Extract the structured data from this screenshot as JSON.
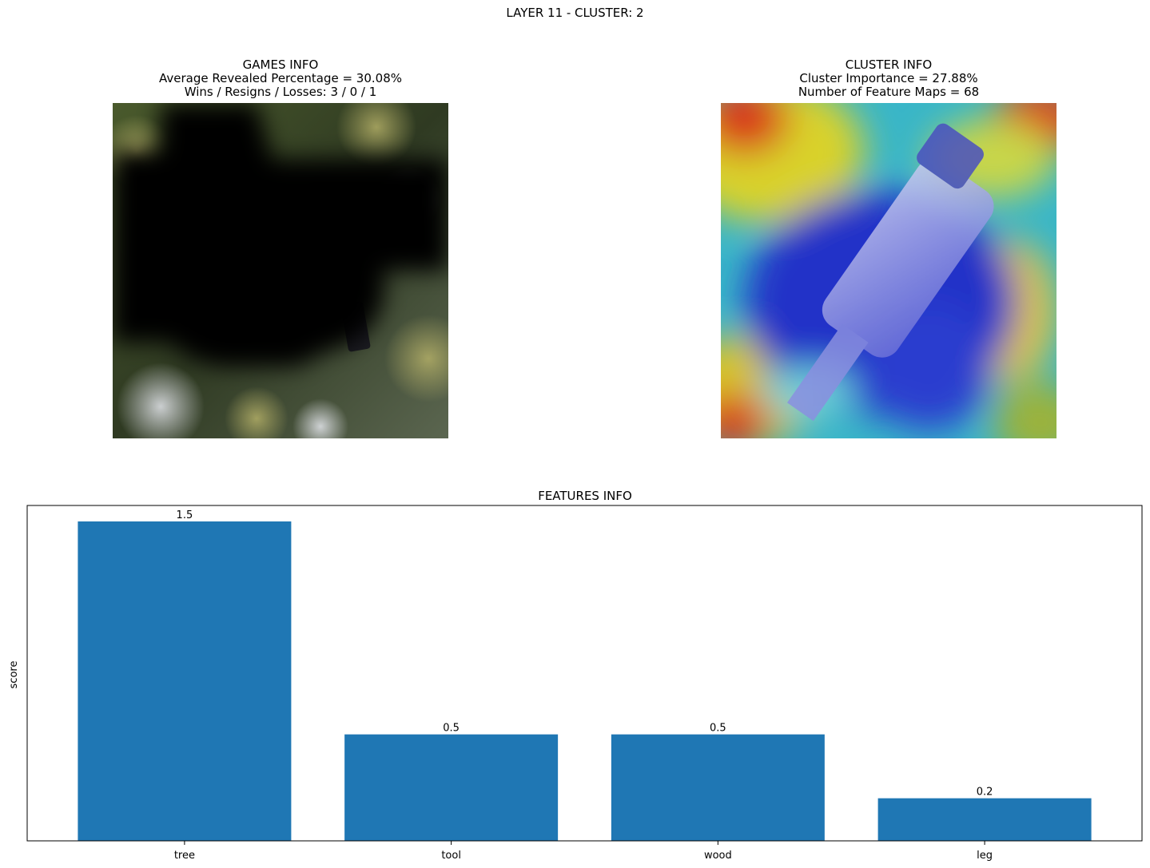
{
  "figure": {
    "suptitle": "LAYER 11 - CLUSTER: 2"
  },
  "games_info": {
    "title": "GAMES INFO",
    "line1": "Average Revealed Percentage = 30.08%",
    "line2": "Wins / Resigns / Losses: 3 / 0 / 1"
  },
  "cluster_info": {
    "title": "CLUSTER INFO",
    "line1": "Cluster Importance = 27.88%",
    "line2": "Number of Feature Maps = 68"
  },
  "chart_data": {
    "type": "bar",
    "title": "FEATURES INFO",
    "xlabel": "",
    "ylabel": "score",
    "categories": [
      "tree",
      "tool",
      "wood",
      "leg"
    ],
    "values": [
      1.5,
      0.5,
      0.5,
      0.2
    ],
    "data_labels": [
      "1.5",
      "0.5",
      "0.5",
      "0.2"
    ],
    "ylim": [
      0,
      1.575
    ],
    "bar_color": "#1f77b4",
    "grid": false,
    "y_ticks_visible": false
  }
}
